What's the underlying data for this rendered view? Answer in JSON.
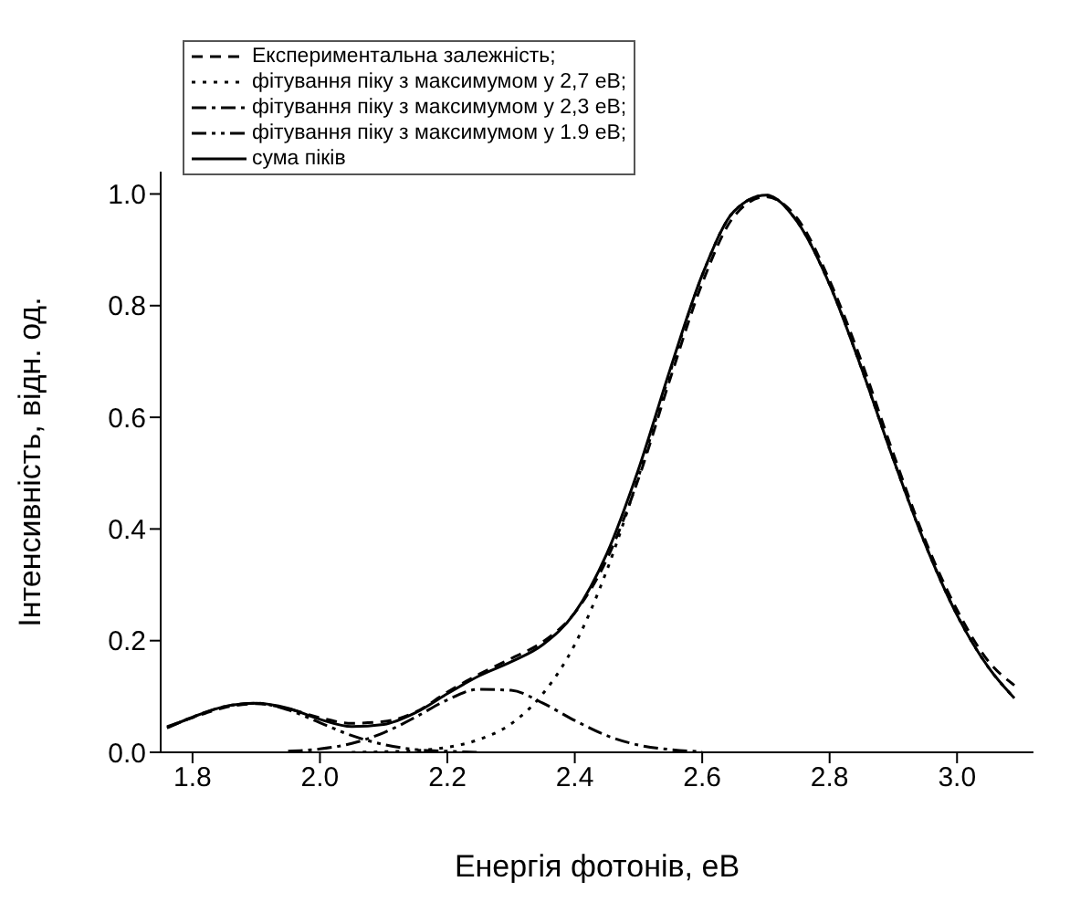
{
  "chart_data": {
    "type": "line",
    "xlabel": "Енергія фотонів, еВ",
    "ylabel": "Інтенсивність, відн. од.",
    "xlim": [
      1.75,
      3.12
    ],
    "ylim": [
      0,
      1.04
    ],
    "xticks": [
      1.8,
      {
        "value": 2,
        "label": "2.0"
      },
      2.2,
      2.4,
      2.6,
      2.8,
      {
        "value": 3,
        "label": "3.0"
      }
    ],
    "yticks": [
      {
        "value": 0,
        "label": "0.0"
      },
      0.2,
      0.4,
      0.6,
      0.8,
      {
        "value": 1,
        "label": "1.0"
      }
    ],
    "grid": false,
    "legend": "top left",
    "marker": "none",
    "series": [
      {
        "name": "Експериментальна залежність;",
        "color": "#000000",
        "line_style": "dashed",
        "x": [
          1.76,
          1.8,
          1.85,
          1.9,
          1.95,
          2.0,
          2.05,
          2.1,
          2.15,
          2.2,
          2.25,
          2.3,
          2.35,
          2.4,
          2.45,
          2.5,
          2.55,
          2.6,
          2.65,
          2.7,
          2.75,
          2.8,
          2.85,
          2.9,
          2.95,
          3.0,
          3.05,
          3.09
        ],
        "values": [
          0.046,
          0.062,
          0.08,
          0.087,
          0.078,
          0.062,
          0.052,
          0.055,
          0.072,
          0.108,
          0.14,
          0.168,
          0.198,
          0.25,
          0.345,
          0.49,
          0.67,
          0.84,
          0.96,
          0.995,
          0.955,
          0.845,
          0.7,
          0.535,
          0.38,
          0.255,
          0.162,
          0.12
        ]
      },
      {
        "name": "фітування піку з максимумом у 2,7 еВ;",
        "color": "#000000",
        "line_style": "dotted",
        "x": [
          2.05,
          2.1,
          2.15,
          2.2,
          2.25,
          2.3,
          2.35,
          2.4,
          2.45,
          2.5,
          2.55,
          2.6,
          2.65,
          2.7,
          2.75,
          2.8,
          2.85,
          2.9,
          2.95,
          3.0,
          3.05,
          3.09
        ],
        "values": [
          0,
          0.001,
          0.003,
          0.009,
          0.023,
          0.051,
          0.105,
          0.193,
          0.325,
          0.494,
          0.682,
          0.854,
          0.969,
          0.998,
          0.949,
          0.838,
          0.688,
          0.525,
          0.373,
          0.246,
          0.151,
          0.097
        ]
      },
      {
        "name": "фітування піку з максимумом у 2,3 еВ;",
        "color": "#000000",
        "line_style": "dashdot",
        "x": [
          1.95,
          2.0,
          2.05,
          2.1,
          2.15,
          2.2,
          2.25,
          2.3,
          2.35,
          2.4,
          2.45,
          2.5,
          2.55,
          2.6
        ],
        "values": [
          0.002,
          0.006,
          0.016,
          0.035,
          0.063,
          0.094,
          0.113,
          0.111,
          0.088,
          0.057,
          0.03,
          0.013,
          0.005,
          0.001
        ]
      },
      {
        "name": "фітування піку з максимумом у 1.9 еВ;",
        "color": "#000000",
        "line_style": "dashdotdot",
        "x": [
          1.76,
          1.8,
          1.85,
          1.9,
          1.95,
          2.0,
          2.05,
          2.1,
          2.15,
          2.2,
          2.25
        ],
        "values": [
          0.044,
          0.063,
          0.082,
          0.088,
          0.076,
          0.053,
          0.03,
          0.014,
          0.005,
          0.002,
          0
        ]
      },
      {
        "name": "сума піків",
        "color": "#000000",
        "line_style": "solid",
        "x": [
          1.76,
          1.8,
          1.85,
          1.9,
          1.95,
          2.0,
          2.05,
          2.1,
          2.15,
          2.2,
          2.25,
          2.3,
          2.35,
          2.4,
          2.45,
          2.5,
          2.55,
          2.6,
          2.65,
          2.7,
          2.75,
          2.8,
          2.85,
          2.9,
          2.95,
          3.0,
          3.05,
          3.09
        ],
        "values": [
          0.044,
          0.063,
          0.082,
          0.088,
          0.079,
          0.059,
          0.046,
          0.05,
          0.071,
          0.105,
          0.137,
          0.162,
          0.193,
          0.25,
          0.355,
          0.507,
          0.687,
          0.855,
          0.969,
          0.998,
          0.949,
          0.838,
          0.688,
          0.525,
          0.373,
          0.246,
          0.151,
          0.097
        ]
      }
    ]
  }
}
